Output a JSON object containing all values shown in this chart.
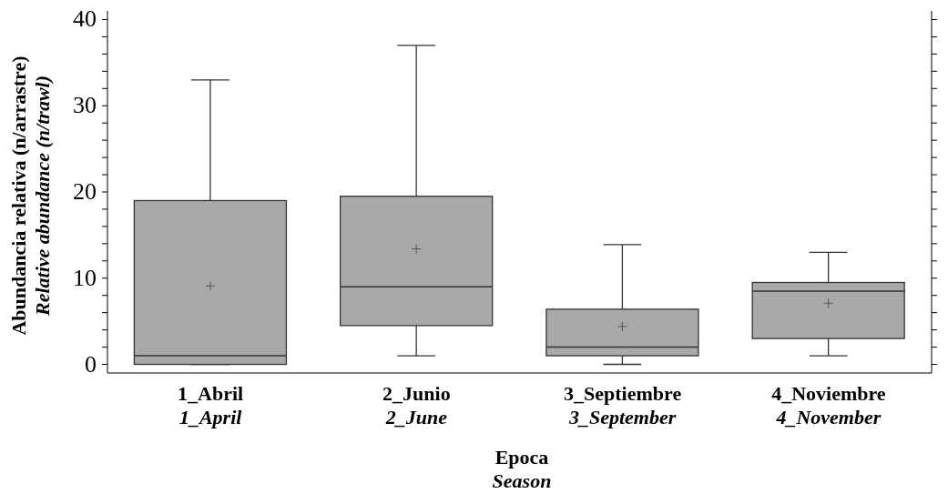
{
  "chart_data": {
    "type": "box",
    "categories": [
      "1_Abril\n1_April",
      "2_Junio\n2_June",
      "3_Septiembre\n3_September",
      "4_Noviembre\n4_November"
    ],
    "boxes": [
      {
        "low": 0,
        "q1": 0,
        "median": 1,
        "q3": 19,
        "high": 33,
        "mean": 9.1
      },
      {
        "low": 1,
        "q1": 4.5,
        "median": 9,
        "q3": 19.5,
        "high": 37,
        "mean": 13.4
      },
      {
        "low": 0,
        "q1": 1,
        "median": 2,
        "q3": 6.4,
        "high": 13.9,
        "mean": 4.4
      },
      {
        "low": 1,
        "q1": 3,
        "median": 8.5,
        "q3": 9.5,
        "high": 13,
        "mean": 7.1
      }
    ],
    "color": "#a9a9a9",
    "xlabel": "Epoca\nSeason",
    "ylabel": "Abundancia relativa (n/arrastre)\nRelative abundance (n/trawl)",
    "ylim": [
      -1,
      41
    ],
    "yticks": [
      0,
      {
        "value": 2,
        "label": null
      },
      {
        "value": 4,
        "label": null
      },
      {
        "value": 6,
        "label": null
      },
      {
        "value": 8,
        "label": null
      },
      10,
      {
        "value": 12,
        "label": null
      },
      {
        "value": 14,
        "label": null
      },
      {
        "value": 16,
        "label": null
      },
      {
        "value": 18,
        "label": null
      },
      20,
      {
        "value": 22,
        "label": null
      },
      {
        "value": 24,
        "label": null
      },
      {
        "value": 26,
        "label": null
      },
      {
        "value": 28,
        "label": null
      },
      30,
      {
        "value": 32,
        "label": null
      },
      {
        "value": 34,
        "label": null
      },
      {
        "value": 36,
        "label": null
      },
      {
        "value": 38,
        "label": null
      },
      40
    ]
  }
}
